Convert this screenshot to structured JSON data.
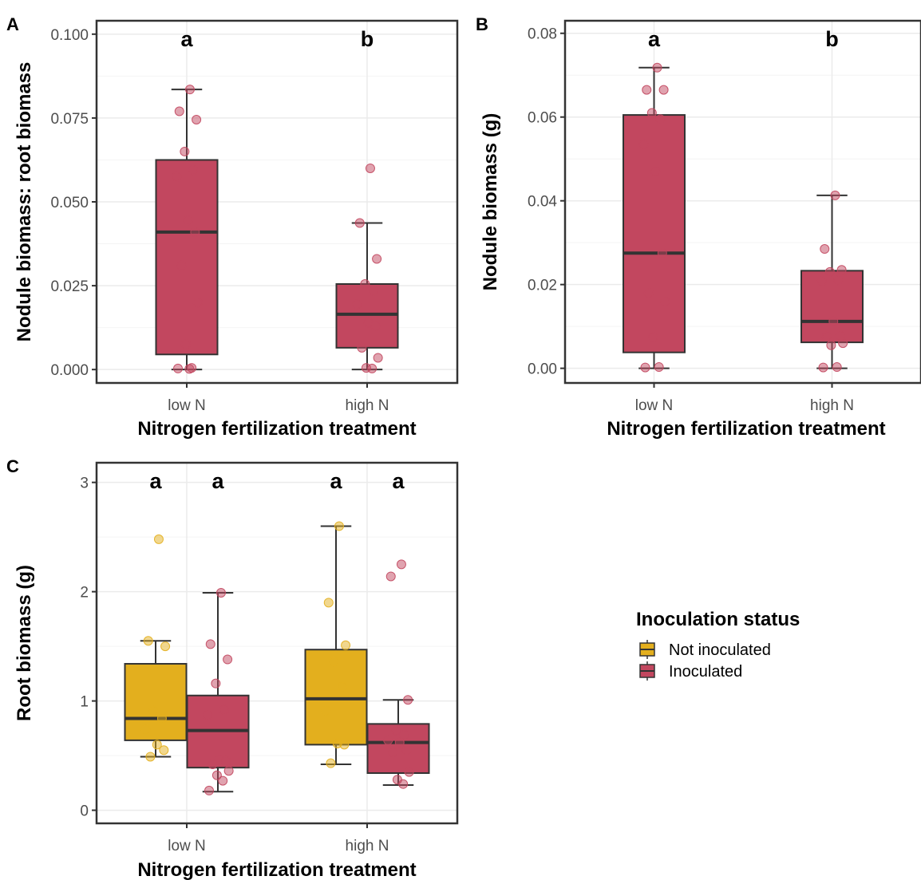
{
  "colors": {
    "inoculated": "#C2475F",
    "not_inoculated": "#E3AF1E",
    "outline": "#333333",
    "grid": "#ebebeb"
  },
  "legend": {
    "title": "Inoculation status",
    "items": [
      {
        "label": "Not inoculated",
        "color": "#E3AF1E"
      },
      {
        "label": "Inoculated",
        "color": "#C2475F"
      }
    ]
  },
  "chart_data": [
    {
      "panel": "A",
      "type": "boxplot",
      "xlabel": "Nitrogen fertilization treatment",
      "ylabel": "Nodule biomass: root biomass",
      "ylim": [
        -0.004,
        0.104
      ],
      "yticks": [
        0,
        0.025,
        0.05,
        0.075,
        0.1
      ],
      "ytick_labels": [
        "0.000",
        "0.025",
        "0.050",
        "0.075",
        "0.100"
      ],
      "categories": [
        "low N",
        "high N"
      ],
      "grid": true,
      "series": [
        {
          "color": "#C2475F",
          "boxes": [
            {
              "category": "low N",
              "min": 0,
              "q1": 0.0045,
              "median": 0.041,
              "q3": 0.0625,
              "max": 0.0835,
              "letter": "a",
              "points": [
                0.0835,
                0.077,
                0.0745,
                0.065,
                0.0595,
                0.0575,
                0.0445,
                0.041,
                0.031,
                0.02,
                0.0075,
                0.0005,
                0.0003,
                0.0002
              ]
            },
            {
              "category": "high N",
              "min": 0,
              "q1": 0.0065,
              "median": 0.0165,
              "q3": 0.0255,
              "max": 0.0437,
              "letter": "b",
              "points": [
                0.06,
                0.0437,
                0.033,
                0.0255,
                0.0235,
                0.0195,
                0.014,
                0.013,
                0.0065,
                0.0035,
                0.0005,
                0.0003
              ]
            }
          ]
        }
      ]
    },
    {
      "panel": "B",
      "type": "boxplot",
      "xlabel": "Nitrogen fertilization treatment",
      "ylabel": "Nodule biomass (g)",
      "ylim": [
        -0.0035,
        0.083
      ],
      "yticks": [
        0,
        0.02,
        0.04,
        0.06,
        0.08
      ],
      "ytick_labels": [
        "0.00",
        "0.02",
        "0.04",
        "0.06",
        "0.08"
      ],
      "categories": [
        "low N",
        "high N"
      ],
      "grid": true,
      "series": [
        {
          "color": "#C2475F",
          "boxes": [
            {
              "category": "low N",
              "min": 0,
              "q1": 0.0038,
              "median": 0.0275,
              "q3": 0.0605,
              "max": 0.0718,
              "letter": "a",
              "points": [
                0.0718,
                0.0665,
                0.0665,
                0.061,
                0.0595,
                0.0535,
                0.047,
                0.0275,
                0.018,
                0.016,
                0.0075,
                0.0003,
                0.0002
              ]
            },
            {
              "category": "high N",
              "min": 0,
              "q1": 0.0062,
              "median": 0.0112,
              "q3": 0.0233,
              "max": 0.0413,
              "letter": "b",
              "points": [
                0.0413,
                0.0285,
                0.0235,
                0.023,
                0.021,
                0.0208,
                0.0112,
                0.0078,
                0.0076,
                0.006,
                0.0055,
                0.0003,
                0.0002
              ]
            }
          ]
        }
      ]
    },
    {
      "panel": "C",
      "type": "boxplot",
      "xlabel": "Nitrogen fertilization treatment",
      "ylabel": "Root biomass (g)",
      "ylim": [
        -0.12,
        3.18
      ],
      "yticks": [
        0,
        1,
        2,
        3
      ],
      "ytick_labels": [
        "0",
        "1",
        "2",
        "3"
      ],
      "categories": [
        "low N",
        "high N"
      ],
      "grid": true,
      "series": [
        {
          "name": "Not inoculated",
          "color": "#E3AF1E",
          "boxes": [
            {
              "category": "low N",
              "min": 0.49,
              "q1": 0.64,
              "median": 0.84,
              "q3": 1.34,
              "max": 1.55,
              "letter": "a",
              "points": [
                2.48,
                1.55,
                1.5,
                0.91,
                0.84,
                0.74,
                0.6,
                0.55,
                0.49
              ]
            },
            {
              "category": "high N",
              "min": 0.42,
              "q1": 0.6,
              "median": 1.02,
              "q3": 1.47,
              "max": 2.6,
              "letter": "a",
              "points": [
                2.6,
                1.9,
                1.51,
                1.36,
                1.13,
                0.91,
                0.61,
                0.6,
                0.43
              ]
            }
          ]
        },
        {
          "name": "Inoculated",
          "color": "#C2475F",
          "boxes": [
            {
              "category": "low N",
              "min": 0.17,
              "q1": 0.39,
              "median": 0.73,
              "q3": 1.05,
              "max": 1.99,
              "letter": "a",
              "points": [
                1.99,
                1.52,
                1.38,
                1.16,
                0.92,
                0.87,
                0.46,
                0.45,
                0.42,
                0.36,
                0.32,
                0.27,
                0.18
              ]
            },
            {
              "category": "high N",
              "min": 0.23,
              "q1": 0.34,
              "median": 0.62,
              "q3": 0.79,
              "max": 1.01,
              "letter": "a",
              "points": [
                2.25,
                2.14,
                1.01,
                0.73,
                0.69,
                0.64,
                0.62,
                0.55,
                0.53,
                0.35,
                0.28,
                0.24
              ]
            }
          ]
        }
      ]
    }
  ]
}
